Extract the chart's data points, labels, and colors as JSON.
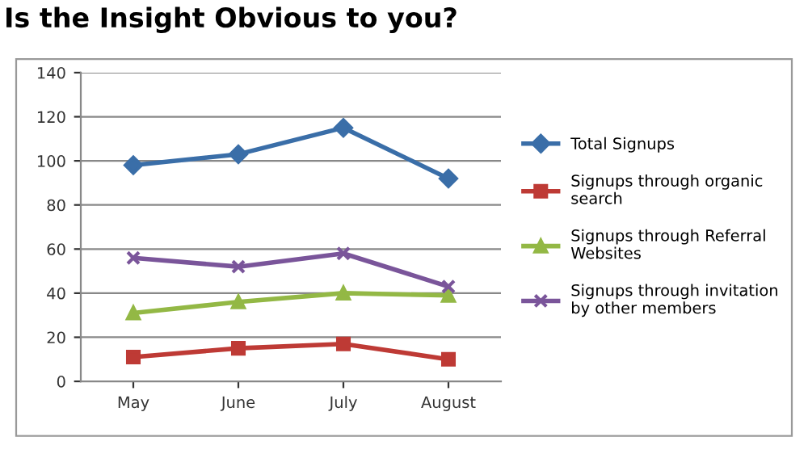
{
  "chart_data": {
    "type": "line",
    "title": "Is the Insight Obvious to you?",
    "categories": [
      "May",
      "June",
      "July",
      "August"
    ],
    "series": [
      {
        "name": "Total Signups",
        "color": "#3a6ea8",
        "marker": "diamond",
        "values": [
          98,
          103,
          115,
          92
        ]
      },
      {
        "name": "Signups through organic\nsearch",
        "color": "#be3a35",
        "marker": "square",
        "values": [
          11,
          15,
          17,
          10
        ]
      },
      {
        "name": "Signups through Referral\nWebsites",
        "color": "#93b845",
        "marker": "triangle",
        "values": [
          31,
          36,
          40,
          39
        ]
      },
      {
        "name": "Signups through invitation\nby other members",
        "color": "#7a559a",
        "marker": "cross",
        "values": [
          56,
          52,
          58,
          43
        ]
      }
    ],
    "ylim": [
      0,
      140
    ],
    "yticks": [
      0,
      20,
      40,
      60,
      80,
      100,
      120,
      140
    ],
    "grid": "y",
    "legend": "right"
  }
}
